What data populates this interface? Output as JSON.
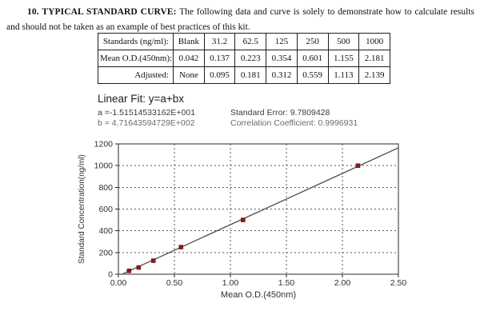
{
  "intro": {
    "heading": "10. TYPICAL STANDARD CURVE:",
    "text": " The following data and curve is solely to demonstrate how to calculate results and should not be taken as an example of best practices of this kit."
  },
  "table": {
    "rows": [
      {
        "label": "Standards (ng/ml):",
        "values": [
          "Blank",
          "31.2",
          "62.5",
          "125",
          "250",
          "500",
          "1000"
        ]
      },
      {
        "label": "Mean O.D.(450nm):",
        "values": [
          "0.042",
          "0.137",
          "0.223",
          "0.354",
          "0.601",
          "1.155",
          "2.181"
        ]
      },
      {
        "label": "Adjusted:",
        "values": [
          "None",
          "0.095",
          "0.181",
          "0.312",
          "0.559",
          "1.113",
          "2.139"
        ]
      }
    ]
  },
  "fit": {
    "title": "Linear Fit: y=a+bx",
    "a_label": "a =-1.51514533162E+001",
    "b_label": "b = 4.71643594729E+002",
    "std_error": "Standard Error: 9.7809428",
    "corr": "Correlation Coefficient: 0.9996931"
  },
  "chart_data": {
    "type": "scatter",
    "title": "",
    "xlabel": "Mean O.D.(450nm)",
    "ylabel": "Standard Concentration(ng/ml)",
    "xlim": [
      0,
      2.5
    ],
    "ylim": [
      0,
      1200
    ],
    "x_ticks": [
      0,
      0.5,
      1.0,
      1.5,
      2.0,
      2.5
    ],
    "x_tick_labels": [
      "0.00",
      "0.50",
      "1.00",
      "1.50",
      "2.00",
      "2.50"
    ],
    "y_ticks": [
      0,
      200,
      400,
      600,
      800,
      1000,
      1200
    ],
    "y_tick_labels": [
      "0",
      "200",
      "400",
      "600",
      "800",
      "1000",
      "1200"
    ],
    "grid": true,
    "legend": false,
    "points": [
      {
        "x": 0.095,
        "y": 31.2
      },
      {
        "x": 0.181,
        "y": 62.5
      },
      {
        "x": 0.312,
        "y": 125
      },
      {
        "x": 0.559,
        "y": 250
      },
      {
        "x": 1.113,
        "y": 500
      },
      {
        "x": 2.139,
        "y": 1000
      }
    ],
    "fit_line": {
      "a": -15.1514533162,
      "b": 471.643594729
    },
    "colors": {
      "fit_line": "#4e5e56",
      "marker": "#8e1b1b",
      "marker_edge": "#4a0d0d",
      "grid": "#5a5a5a",
      "axis": "#2a2a2a",
      "text": "#2f2f2f"
    }
  }
}
